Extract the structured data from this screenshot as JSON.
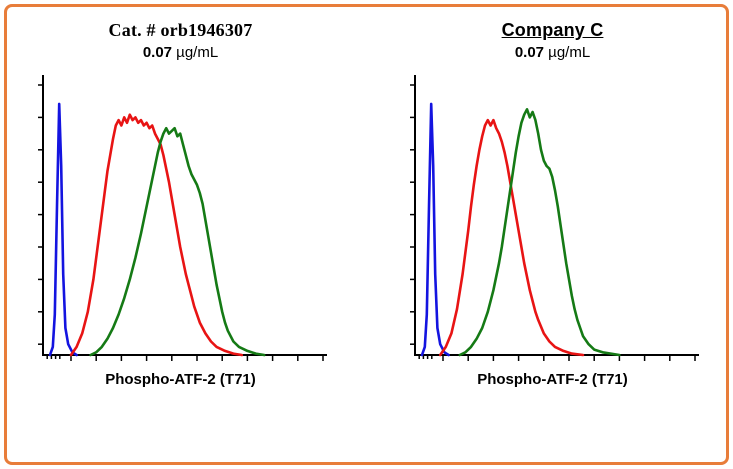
{
  "frame": {
    "border_color": "#e87d3a",
    "background": "#ffffff"
  },
  "panels": [
    {
      "title": "Cat. # orb1946307",
      "dose_value": "0.07",
      "dose_units": " µg/mL",
      "xlabel": "Phospho-ATF-2 (T71)"
    },
    {
      "title": "Company C",
      "dose_value": "0.07",
      "dose_units": " µg/mL",
      "xlabel": "Phospho-ATF-2 (T71)"
    }
  ],
  "chart_data": [
    {
      "type": "line",
      "title": "Cat. # orb1946307 0.07 µg/mL",
      "subtitle": "Flow cytometry histogram overlay",
      "xlabel": "Phospho-ATF-2 (T71)",
      "ylabel": "",
      "x_axis_scale": "log (unlabeled)",
      "ylim_pct": [
        0,
        100
      ],
      "grid": false,
      "legend": "none",
      "axis": {
        "y_ticks_pct": [
          4,
          16,
          28,
          40,
          52,
          64,
          76,
          88,
          100
        ],
        "x_minor_ticks_pct": [
          1.5,
          3,
          4.5,
          6
        ],
        "x_major_ticks_pct": [
          10,
          19,
          28,
          37,
          46,
          55,
          64,
          73,
          82,
          91,
          100
        ]
      },
      "series": [
        {
          "name": "blue",
          "color": "#1414e0",
          "points": [
            [
              2.5,
              0
            ],
            [
              3.5,
              3
            ],
            [
              4.2,
              15
            ],
            [
              5,
              55
            ],
            [
              5.8,
              93
            ],
            [
              6.5,
              70
            ],
            [
              7.2,
              30
            ],
            [
              8,
              10
            ],
            [
              9,
              4
            ],
            [
              10.5,
              1
            ],
            [
              12,
              0
            ]
          ]
        },
        {
          "name": "red",
          "color": "#e81414",
          "points": [
            [
              10,
              0
            ],
            [
              12,
              3
            ],
            [
              14,
              8
            ],
            [
              16,
              16
            ],
            [
              18,
              28
            ],
            [
              20,
              44
            ],
            [
              22,
              60
            ],
            [
              23,
              68
            ],
            [
              24,
              74
            ],
            [
              25,
              80
            ],
            [
              26,
              85
            ],
            [
              27,
              87
            ],
            [
              28,
              85
            ],
            [
              29,
              88
            ],
            [
              30,
              86
            ],
            [
              31,
              89
            ],
            [
              32,
              87
            ],
            [
              33,
              88
            ],
            [
              34,
              86
            ],
            [
              35,
              87
            ],
            [
              36,
              85
            ],
            [
              37,
              86
            ],
            [
              38,
              84
            ],
            [
              39,
              85
            ],
            [
              40,
              82
            ],
            [
              41,
              80
            ],
            [
              42,
              78
            ],
            [
              43,
              74
            ],
            [
              44,
              69
            ],
            [
              45,
              64
            ],
            [
              46,
              58
            ],
            [
              47,
              52
            ],
            [
              48,
              46
            ],
            [
              49,
              40
            ],
            [
              50,
              35
            ],
            [
              51,
              30
            ],
            [
              52,
              26
            ],
            [
              53,
              22
            ],
            [
              54,
              18
            ],
            [
              56,
              12
            ],
            [
              58,
              8
            ],
            [
              60,
              5
            ],
            [
              62,
              3
            ],
            [
              65,
              1.5
            ],
            [
              68,
              0.5
            ],
            [
              71,
              0
            ]
          ]
        },
        {
          "name": "green",
          "color": "#157a15",
          "points": [
            [
              17,
              0
            ],
            [
              19,
              1
            ],
            [
              21,
              3
            ],
            [
              23,
              6
            ],
            [
              25,
              10
            ],
            [
              27,
              15
            ],
            [
              29,
              21
            ],
            [
              31,
              28
            ],
            [
              33,
              36
            ],
            [
              35,
              45
            ],
            [
              36,
              50
            ],
            [
              37,
              55
            ],
            [
              38,
              60
            ],
            [
              39,
              65
            ],
            [
              40,
              70
            ],
            [
              41,
              75
            ],
            [
              42,
              79
            ],
            [
              43,
              82
            ],
            [
              44,
              84
            ],
            [
              45,
              82
            ],
            [
              46,
              83
            ],
            [
              47,
              84
            ],
            [
              48,
              81
            ],
            [
              49,
              82
            ],
            [
              50,
              78
            ],
            [
              51,
              74
            ],
            [
              52,
              70
            ],
            [
              53,
              67
            ],
            [
              54,
              65
            ],
            [
              55,
              63
            ],
            [
              56,
              60
            ],
            [
              57,
              56
            ],
            [
              58,
              50
            ],
            [
              59,
              44
            ],
            [
              60,
              38
            ],
            [
              61,
              32
            ],
            [
              62,
              26
            ],
            [
              63,
              21
            ],
            [
              64,
              16
            ],
            [
              65,
              12
            ],
            [
              66,
              9
            ],
            [
              68,
              5
            ],
            [
              70,
              3
            ],
            [
              73,
              1.5
            ],
            [
              76,
              0.5
            ],
            [
              79,
              0
            ]
          ]
        }
      ]
    },
    {
      "type": "line",
      "title": "Company C 0.07 µg/mL",
      "subtitle": "Flow cytometry histogram overlay",
      "xlabel": "Phospho-ATF-2 (T71)",
      "ylabel": "",
      "x_axis_scale": "log (unlabeled)",
      "ylim_pct": [
        0,
        100
      ],
      "grid": false,
      "legend": "none",
      "axis": {
        "y_ticks_pct": [
          4,
          16,
          28,
          40,
          52,
          64,
          76,
          88,
          100
        ],
        "x_minor_ticks_pct": [
          1.5,
          3,
          4.5,
          6
        ],
        "x_major_ticks_pct": [
          10,
          19,
          28,
          37,
          46,
          55,
          64,
          73,
          82,
          91,
          100
        ]
      },
      "series": [
        {
          "name": "blue",
          "color": "#1414e0",
          "points": [
            [
              2.5,
              0
            ],
            [
              3.5,
              3
            ],
            [
              4.2,
              15
            ],
            [
              5,
              55
            ],
            [
              5.8,
              93
            ],
            [
              6.5,
              70
            ],
            [
              7.2,
              30
            ],
            [
              8,
              10
            ],
            [
              9,
              4
            ],
            [
              10.5,
              1
            ],
            [
              12,
              0
            ]
          ]
        },
        {
          "name": "red",
          "color": "#e81414",
          "points": [
            [
              9,
              0
            ],
            [
              11,
              3
            ],
            [
              13,
              8
            ],
            [
              15,
              17
            ],
            [
              17,
              30
            ],
            [
              19,
              46
            ],
            [
              20,
              55
            ],
            [
              21,
              63
            ],
            [
              22,
              70
            ],
            [
              23,
              76
            ],
            [
              24,
              81
            ],
            [
              25,
              85
            ],
            [
              26,
              87
            ],
            [
              27,
              85
            ],
            [
              28,
              87
            ],
            [
              29,
              84
            ],
            [
              30,
              82
            ],
            [
              31,
              79
            ],
            [
              32,
              75
            ],
            [
              33,
              70
            ],
            [
              34,
              64
            ],
            [
              35,
              58
            ],
            [
              36,
              52
            ],
            [
              37,
              46
            ],
            [
              38,
              40
            ],
            [
              39,
              34
            ],
            [
              40,
              29
            ],
            [
              41,
              24
            ],
            [
              42,
              20
            ],
            [
              43,
              16
            ],
            [
              44,
              13
            ],
            [
              46,
              8
            ],
            [
              48,
              5
            ],
            [
              50,
              3
            ],
            [
              53,
              1.5
            ],
            [
              56,
              0.5
            ],
            [
              60,
              0
            ]
          ]
        },
        {
          "name": "green",
          "color": "#157a15",
          "points": [
            [
              16,
              0
            ],
            [
              18,
              1
            ],
            [
              20,
              3
            ],
            [
              22,
              6
            ],
            [
              24,
              10
            ],
            [
              26,
              16
            ],
            [
              28,
              24
            ],
            [
              30,
              34
            ],
            [
              31,
              40
            ],
            [
              32,
              47
            ],
            [
              33,
              54
            ],
            [
              34,
              61
            ],
            [
              35,
              68
            ],
            [
              36,
              75
            ],
            [
              37,
              81
            ],
            [
              38,
              86
            ],
            [
              39,
              89
            ],
            [
              40,
              91
            ],
            [
              41,
              88
            ],
            [
              42,
              90
            ],
            [
              43,
              87
            ],
            [
              44,
              82
            ],
            [
              45,
              76
            ],
            [
              46,
              72
            ],
            [
              47,
              70
            ],
            [
              48,
              69
            ],
            [
              49,
              66
            ],
            [
              50,
              61
            ],
            [
              51,
              55
            ],
            [
              52,
              48
            ],
            [
              53,
              41
            ],
            [
              54,
              34
            ],
            [
              55,
              28
            ],
            [
              56,
              22
            ],
            [
              57,
              17
            ],
            [
              58,
              13
            ],
            [
              59,
              10
            ],
            [
              60,
              7
            ],
            [
              62,
              4
            ],
            [
              64,
              2
            ],
            [
              67,
              1
            ],
            [
              70,
              0.5
            ],
            [
              73,
              0
            ]
          ]
        }
      ]
    }
  ]
}
